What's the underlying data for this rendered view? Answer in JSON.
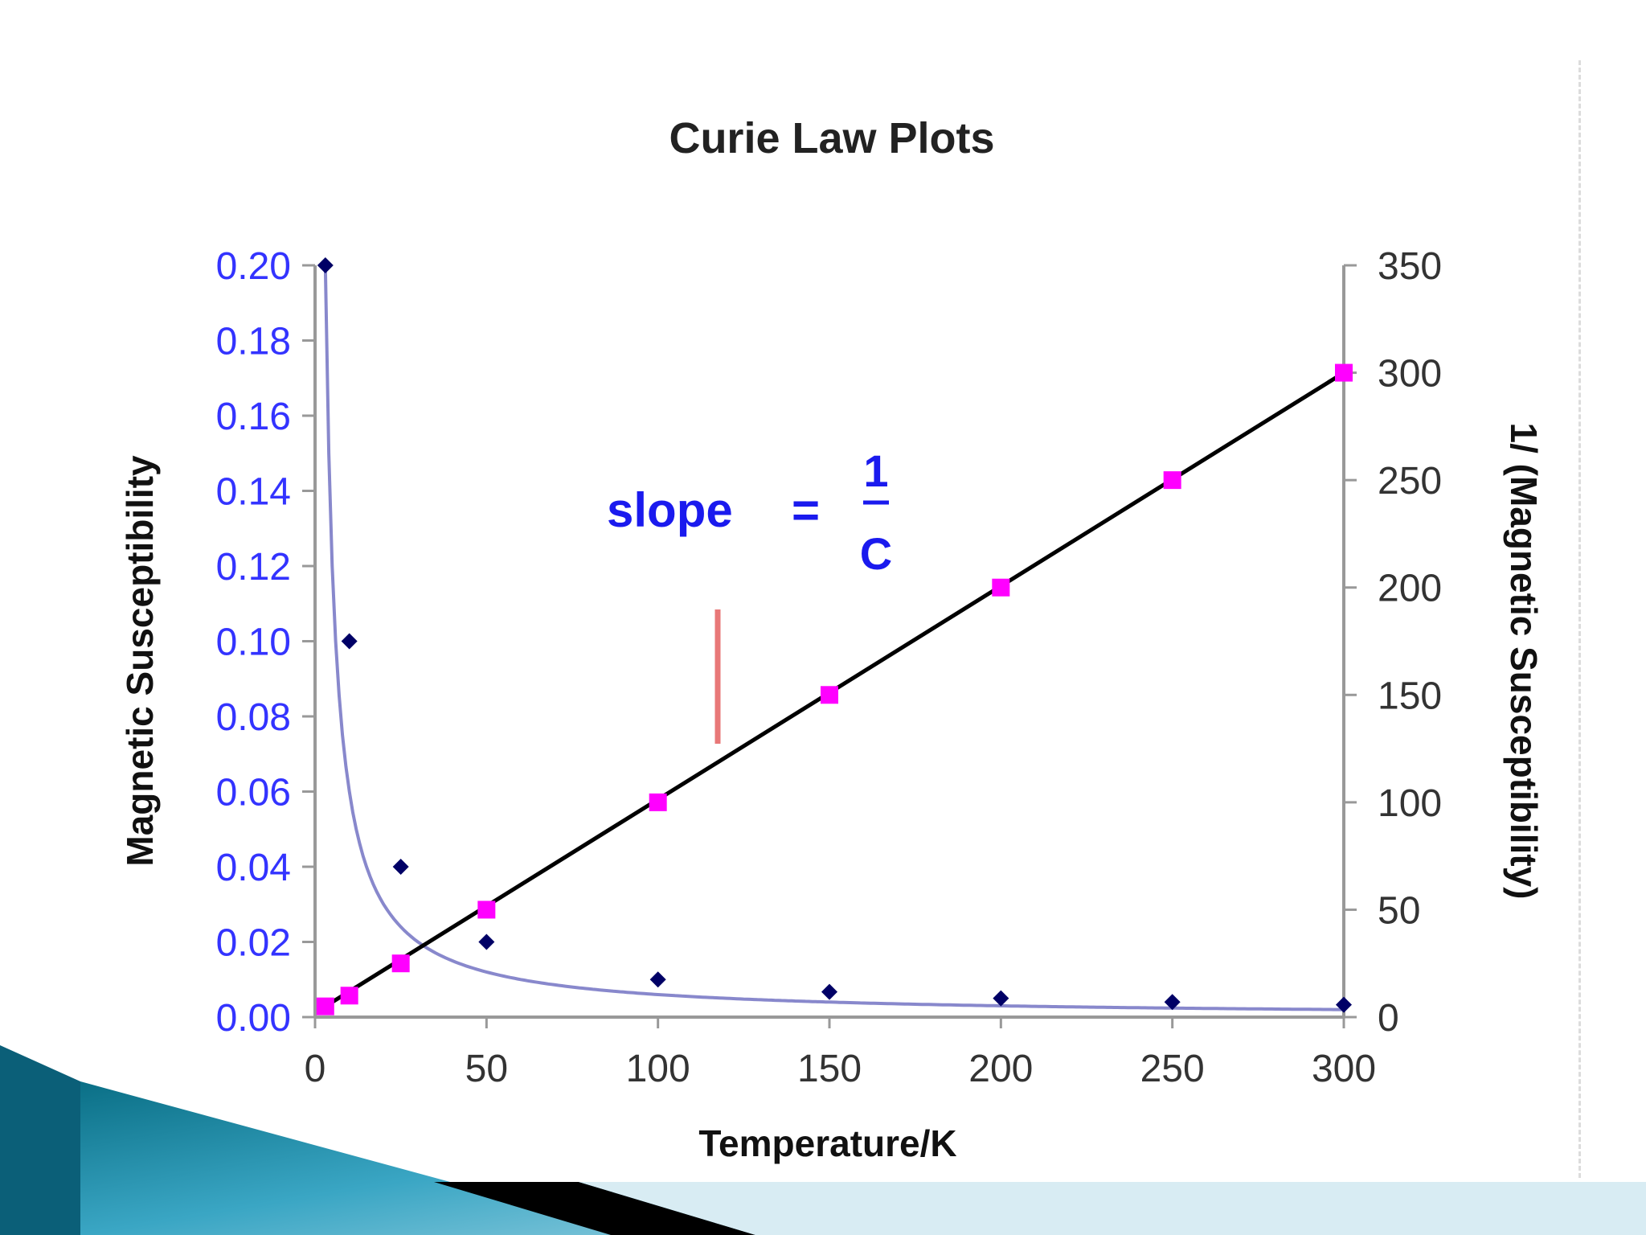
{
  "chart_data": {
    "type": "scatter",
    "title": "Curie Law Plots",
    "xlabel": "Temperature/K",
    "ylabel_left": "Magnetic Susceptibility",
    "ylabel_right": "1/ (Magnetic Susceptibility)",
    "xlim": [
      0,
      300
    ],
    "ylim_left": [
      0,
      0.2
    ],
    "ylim_right": [
      0,
      350
    ],
    "x_ticks": [
      "0",
      "50",
      "100",
      "150",
      "200",
      "250",
      "300"
    ],
    "y_left_ticks": [
      "0.00",
      "0.02",
      "0.04",
      "0.06",
      "0.08",
      "0.10",
      "0.12",
      "0.14",
      "0.16",
      "0.18",
      "0.20"
    ],
    "y_right_ticks": [
      "0",
      "50",
      "100",
      "150",
      "200",
      "250",
      "300",
      "350"
    ],
    "grid": false,
    "legend": "none",
    "series": [
      {
        "axis": "left",
        "color": "#000066",
        "line_color": "#8888cc",
        "marker": "diamond",
        "x": [
          3,
          10,
          25,
          50,
          100,
          150,
          200,
          250,
          300
        ],
        "y": [
          0.2,
          0.1,
          0.04,
          0.02,
          0.01,
          0.0067,
          0.005,
          0.004,
          0.0033
        ]
      },
      {
        "axis": "right",
        "color": "#ff00ff",
        "line_color": "#000000",
        "marker": "square",
        "x": [
          3,
          10,
          25,
          50,
          100,
          150,
          200,
          250,
          300
        ],
        "y": [
          5,
          10,
          25,
          50,
          100,
          150,
          200,
          250,
          300
        ]
      }
    ],
    "annotations": {
      "slope_text": "slope",
      "equals": "=",
      "numerator": "1",
      "denominator": "C",
      "marker_line_color": "#e87878"
    }
  }
}
